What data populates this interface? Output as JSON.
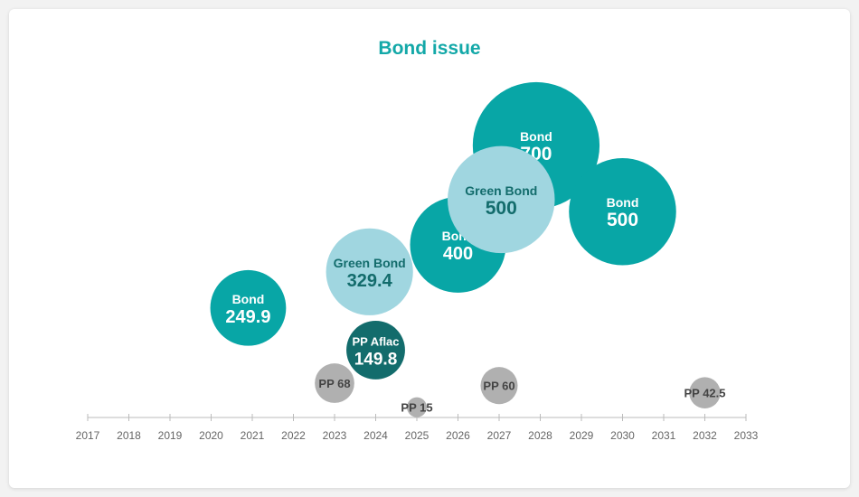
{
  "title": "Bond issue",
  "chart_data": {
    "type": "bubble",
    "title": "Bond issue",
    "x_ticks": [
      2017,
      2018,
      2019,
      2020,
      2021,
      2022,
      2023,
      2024,
      2025,
      2026,
      2027,
      2028,
      2029,
      2030,
      2031,
      2032,
      2033
    ],
    "xlim": [
      2017,
      2033
    ],
    "points": [
      {
        "name": "Bond",
        "value": "700",
        "amount": 700,
        "x": 2027.9,
        "level": 4.4,
        "kind": "bond"
      },
      {
        "name": "Bond",
        "value": "500",
        "amount": 500,
        "x": 2030,
        "level": 3.3,
        "kind": "bond"
      },
      {
        "name": "Bond",
        "value": "400",
        "amount": 400,
        "x": 2026,
        "level": 2.75,
        "kind": "bond"
      },
      {
        "name": "Green Bond",
        "value": "500",
        "amount": 500,
        "x": 2027.05,
        "level": 3.5,
        "kind": "green"
      },
      {
        "name": "Green Bond",
        "value": "329.4",
        "amount": 329.4,
        "x": 2023.85,
        "level": 2.3,
        "kind": "green"
      },
      {
        "name": "Bond",
        "value": "249.9",
        "amount": 249.9,
        "x": 2020.9,
        "level": 1.7,
        "kind": "bond"
      },
      {
        "name": "PP Aflac",
        "value": "149.8",
        "amount": 149.8,
        "x": 2024,
        "level": 1.0,
        "kind": "aflac"
      },
      {
        "name": "PP 68",
        "value": "",
        "amount": 68,
        "x": 2023,
        "level": 0.45,
        "kind": "pp"
      },
      {
        "name": "PP 15",
        "value": "",
        "amount": 15,
        "x": 2025,
        "level": 0.05,
        "kind": "pp"
      },
      {
        "name": "PP 60",
        "value": "",
        "amount": 60,
        "x": 2027,
        "level": 0.41,
        "kind": "pp"
      },
      {
        "name": "PP 42.5",
        "value": "",
        "amount": 42.5,
        "x": 2032,
        "level": 0.29,
        "kind": "pp"
      }
    ],
    "colors": {
      "bond": "#08a6a6",
      "green": "#a0d6e0",
      "aflac": "#136c6c",
      "pp": "#b0b0b0",
      "title": "#13a8a8",
      "axis": "#bbbbbb"
    }
  }
}
